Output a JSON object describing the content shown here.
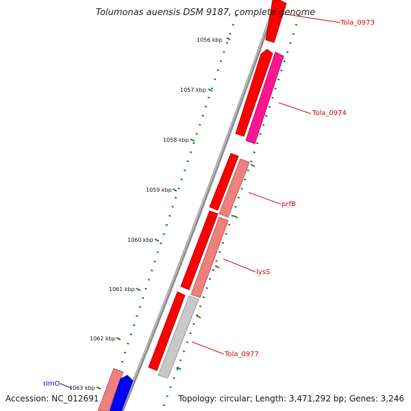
{
  "title": "Tolumonas auensis DSM 9187, complete genome",
  "footer": {
    "accession": "Accession: NC_012691",
    "summary": "Topology: circular; Length: 3,471,292 bp; Genes: 3,246"
  },
  "ruler": {
    "ticks": [
      {
        "label": "1056 kbp"
      },
      {
        "label": "1057 kbp"
      },
      {
        "label": "1058 kbp"
      },
      {
        "label": "1059 kbp"
      },
      {
        "label": "1060 kbp"
      },
      {
        "label": "1061 kbp"
      },
      {
        "label": "1062 kbp"
      },
      {
        "label": "1063 kbp"
      }
    ]
  },
  "genes": [
    {
      "id": "tola0973",
      "label": "Tola_0973",
      "color": "#ff0000",
      "label_color": "#cc0000",
      "strand": "forward"
    },
    {
      "id": "tola0974",
      "label": "Tola_0974",
      "color": "#ff1493",
      "label_color": "#cc0000",
      "strand": "reverse"
    },
    {
      "id": "prfB",
      "label": "prfB",
      "color": "#f08080",
      "label_color": "#cc0000",
      "strand": "reverse"
    },
    {
      "id": "lysS",
      "label": "lysS",
      "color": "#f08080",
      "label_color": "#cc0000",
      "strand": "reverse"
    },
    {
      "id": "tola0977",
      "label": "Tola_0977",
      "color": "#c8c8c8",
      "label_color": "#cc0000",
      "strand": "reverse"
    },
    {
      "id": "rimO",
      "label": "rimO",
      "color": "#0000ff",
      "label_color": "#0000cc",
      "strand": "reverse"
    }
  ],
  "colors": {
    "backbone": "#8c8c8c",
    "tick": "#1a7a1a",
    "cds_forward": "#ff0000",
    "cds_reverse_pink": "#f08080"
  }
}
